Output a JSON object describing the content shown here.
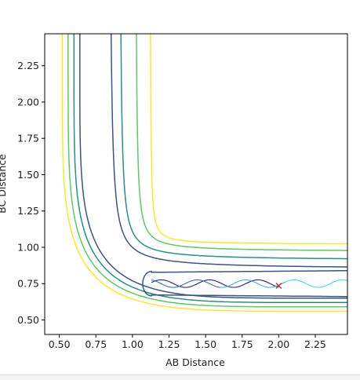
{
  "chart_data": {
    "type": "contour",
    "title": "",
    "xlabel": "AB Distance",
    "ylabel": "BC Distance",
    "xlim": [
      0.4,
      2.47
    ],
    "ylim": [
      0.4,
      2.47
    ],
    "xticks": [
      0.5,
      0.75,
      1.0,
      1.25,
      1.5,
      1.75,
      2.0,
      2.25
    ],
    "xtick_labels": [
      "0.50",
      "0.75",
      "1.00",
      "1.25",
      "1.50",
      "1.75",
      "2.00",
      "2.25"
    ],
    "yticks": [
      0.5,
      0.75,
      1.0,
      1.25,
      1.5,
      1.75,
      2.0,
      2.25
    ],
    "ytick_labels": [
      "0.50",
      "0.75",
      "1.00",
      "1.25",
      "1.50",
      "1.75",
      "2.00",
      "2.25"
    ],
    "grid": false,
    "legend": "none",
    "contour_levels": [
      {
        "level": 1,
        "color": "#fde725",
        "x_wall": 0.52,
        "y_wall": 0.56,
        "x_asymptote": 1.12,
        "y_asymptote": 1.02
      },
      {
        "level": 2,
        "color": "#5ec962",
        "x_wall": 0.56,
        "y_wall": 0.59,
        "x_asymptote": 1.02,
        "y_asymptote": 0.97
      },
      {
        "level": 3,
        "color": "#21918c",
        "x_wall": 0.6,
        "y_wall": 0.62,
        "x_asymptote": 0.91,
        "y_asymptote": 0.91
      },
      {
        "level": 4,
        "color": "#3b528b",
        "x_wall": 0.64,
        "y_wall": 0.65,
        "x_asymptote": 0.84,
        "y_asymptote": 0.85
      }
    ],
    "inner_well": {
      "color": "#3b528b",
      "x_min": 1.07,
      "y_min": 0.66,
      "y_max": 0.84
    },
    "trajectory": {
      "start": [
        2.0,
        0.735
      ],
      "turn_x": 1.13,
      "center_y": 0.75,
      "amplitude": 0.026,
      "end_x": 2.47,
      "colors": [
        "#1f1f9a",
        "#2a6fdb",
        "#3ab2f0",
        "#37e2e6"
      ]
    },
    "marker": {
      "x": 2.0,
      "y": 0.735,
      "symbol": "x",
      "color": "#d62728"
    }
  }
}
